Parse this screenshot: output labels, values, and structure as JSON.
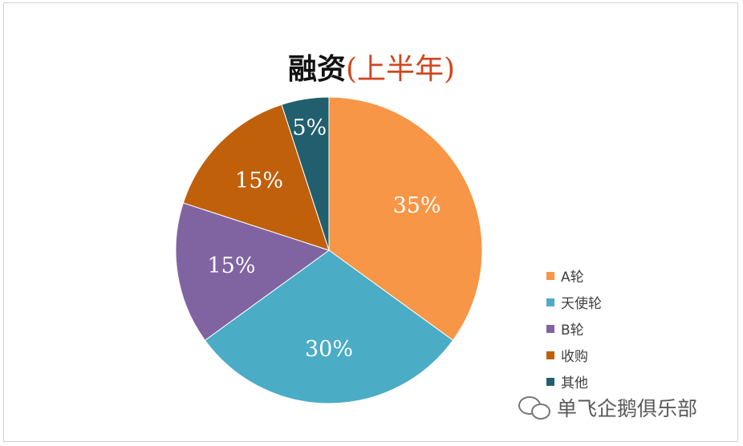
{
  "title": {
    "main": "融资",
    "sub": "(上半年)"
  },
  "chart_data": {
    "type": "pie",
    "title": "融资(上半年)",
    "categories": [
      "A轮",
      "天使轮",
      "B轮",
      "收购",
      "其他"
    ],
    "values": [
      35,
      30,
      15,
      15,
      5
    ],
    "labels": [
      "35%",
      "30%",
      "15%",
      "15%",
      "5%"
    ],
    "colors": [
      "#F79646",
      "#4BACC6",
      "#8064A2",
      "#C0600B",
      "#215F6E"
    ],
    "legend_position": "right"
  },
  "watermark": {
    "text": "单飞企鹅俱乐部",
    "icon": "wechat-icon"
  }
}
